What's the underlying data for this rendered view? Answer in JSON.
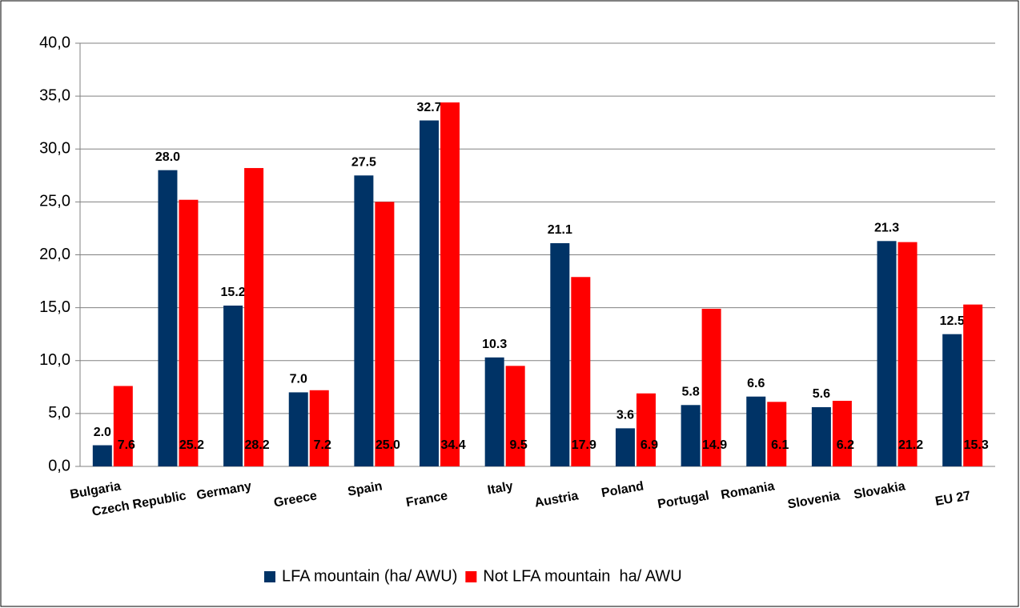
{
  "chart_data": {
    "type": "bar",
    "categories": [
      "Bulgaria",
      "Czech Republic",
      "Germany",
      "Greece",
      "Spain",
      "France",
      "Italy",
      "Austria",
      "Poland",
      "Portugal",
      "Romania",
      "Slovenia",
      "Slovakia",
      "EU 27"
    ],
    "series": [
      {
        "name": "LFA mountain (ha/ AWU)",
        "color": "#003366",
        "values": [
          2.0,
          28.0,
          15.2,
          7.0,
          27.5,
          32.7,
          10.3,
          21.1,
          3.6,
          5.8,
          6.6,
          5.6,
          21.3,
          12.5
        ],
        "value_labels": [
          "2.0",
          "28.0",
          "15.2",
          "7.0",
          "27.5",
          "32.7",
          "10.3",
          "21.1",
          "3.6",
          "5.8",
          "6.6",
          "5.6",
          "21.3",
          "12.5"
        ]
      },
      {
        "name": "Not LFA mountain  ha/ AWU",
        "color": "#ff0000",
        "values": [
          7.6,
          25.2,
          28.2,
          7.2,
          25.0,
          34.4,
          9.5,
          17.9,
          6.9,
          14.9,
          6.1,
          6.2,
          21.2,
          15.3
        ],
        "value_labels": [
          "7.6",
          "25.2",
          "28.2",
          "7.2",
          "25.0",
          "34.4",
          "9.5",
          "17.9",
          "6.9",
          "14.9",
          "6.1",
          "6.2",
          "21.2",
          "15.3"
        ]
      }
    ],
    "ylim": [
      0,
      40
    ],
    "yticks": [
      {
        "value": 0,
        "label": "0,0"
      },
      {
        "value": 5,
        "label": "5,0"
      },
      {
        "value": 10,
        "label": "10,0"
      },
      {
        "value": 15,
        "label": "15,0"
      },
      {
        "value": 20,
        "label": "20,0"
      },
      {
        "value": 25,
        "label": "25,0"
      },
      {
        "value": 30,
        "label": "30,0"
      },
      {
        "value": 35,
        "label": "35,0"
      },
      {
        "value": 40,
        "label": "40,0"
      }
    ],
    "grid": true,
    "legend": "bottom"
  }
}
